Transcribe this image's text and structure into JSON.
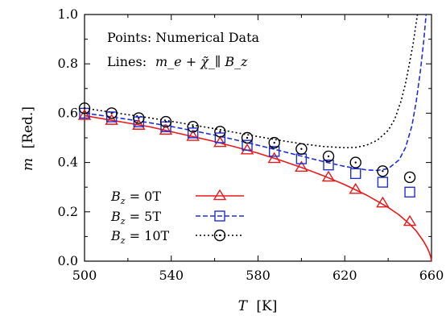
{
  "chart_data": {
    "type": "scatter",
    "xlabel": {
      "var": "T",
      "unit": "[K]"
    },
    "ylabel": {
      "var": "m",
      "unit": "[Red.]"
    },
    "xlim": [
      500,
      660
    ],
    "ylim": [
      0.0,
      1.0
    ],
    "xticks": [
      "500",
      "540",
      "580",
      "620",
      "660"
    ],
    "yticks": [
      "0.0",
      "0.2",
      "0.4",
      "0.6",
      "0.8",
      "1.0"
    ],
    "grid": false,
    "annotations": {
      "points_text": "Points: Numerical Data",
      "lines_prefix": "Lines:",
      "lines_formula": "m_e + χ̃_∥ B_z"
    },
    "legend_position": "bottom-left",
    "series": [
      {
        "name": "B_z =  0T",
        "field": "0T",
        "color": "#e8191b",
        "marker": "triangle",
        "line_style": "solid",
        "points_x": [
          500,
          512.5,
          525,
          537.5,
          550,
          562.5,
          575,
          587.5,
          600,
          612.5,
          625,
          637.5,
          650
        ],
        "points_y": [
          0.59,
          0.57,
          0.55,
          0.53,
          0.505,
          0.48,
          0.45,
          0.415,
          0.38,
          0.34,
          0.29,
          0.235,
          0.16
        ],
        "line_x": [
          500,
          510,
          520,
          530,
          540,
          550,
          560,
          570,
          580,
          590,
          600,
          610,
          620,
          630,
          640,
          645,
          650,
          653,
          656,
          658,
          659,
          659.6,
          660
        ],
        "line_y": [
          0.59,
          0.575,
          0.56,
          0.545,
          0.525,
          0.505,
          0.485,
          0.462,
          0.438,
          0.41,
          0.38,
          0.347,
          0.31,
          0.268,
          0.218,
          0.188,
          0.15,
          0.122,
          0.085,
          0.055,
          0.035,
          0.018,
          0.0
        ]
      },
      {
        "name": "B_z =  5T",
        "field": "5T",
        "color": "#1f2fd6",
        "marker": "square",
        "line_style": "dashed",
        "points_x": [
          500,
          512.5,
          525,
          537.5,
          550,
          562.5,
          575,
          587.5,
          600,
          612.5,
          625,
          637.5,
          650
        ],
        "points_y": [
          0.6,
          0.585,
          0.565,
          0.545,
          0.52,
          0.5,
          0.47,
          0.445,
          0.415,
          0.39,
          0.355,
          0.32,
          0.28
        ],
        "line_x": [
          500,
          510,
          520,
          530,
          540,
          550,
          560,
          570,
          580,
          590,
          600,
          610,
          620,
          630,
          635,
          640,
          645,
          648,
          651,
          653,
          655,
          656.5,
          657.5
        ],
        "line_y": [
          0.6,
          0.588,
          0.575,
          0.561,
          0.546,
          0.529,
          0.511,
          0.491,
          0.47,
          0.448,
          0.426,
          0.404,
          0.384,
          0.37,
          0.368,
          0.375,
          0.41,
          0.46,
          0.55,
          0.65,
          0.78,
          0.9,
          1.0
        ]
      },
      {
        "name": "B_z = 10T",
        "field": "10T",
        "color": "#000000",
        "marker": "circle",
        "line_style": "dotted",
        "points_x": [
          500,
          512.5,
          525,
          537.5,
          550,
          562.5,
          575,
          587.5,
          600,
          612.5,
          625,
          637.5,
          650
        ],
        "points_y": [
          0.62,
          0.6,
          0.58,
          0.565,
          0.545,
          0.525,
          0.5,
          0.48,
          0.455,
          0.425,
          0.4,
          0.365,
          0.34
        ],
        "line_x": [
          500,
          510,
          520,
          530,
          540,
          550,
          560,
          570,
          580,
          590,
          600,
          610,
          620,
          625,
          630,
          635,
          640,
          643,
          646,
          648,
          650,
          651.5,
          652.5,
          653.5
        ],
        "line_y": [
          0.62,
          0.607,
          0.594,
          0.581,
          0.567,
          0.552,
          0.537,
          0.521,
          0.505,
          0.49,
          0.476,
          0.465,
          0.46,
          0.461,
          0.47,
          0.49,
          0.53,
          0.575,
          0.65,
          0.72,
          0.81,
          0.88,
          0.94,
          1.0
        ]
      }
    ],
    "legend_entries": [
      {
        "lhs": "B",
        "sub": "z",
        "eq": " =  0T"
      },
      {
        "lhs": "B",
        "sub": "z",
        "eq": " =  5T"
      },
      {
        "lhs": "B",
        "sub": "z",
        "eq": " = 10T"
      }
    ]
  }
}
